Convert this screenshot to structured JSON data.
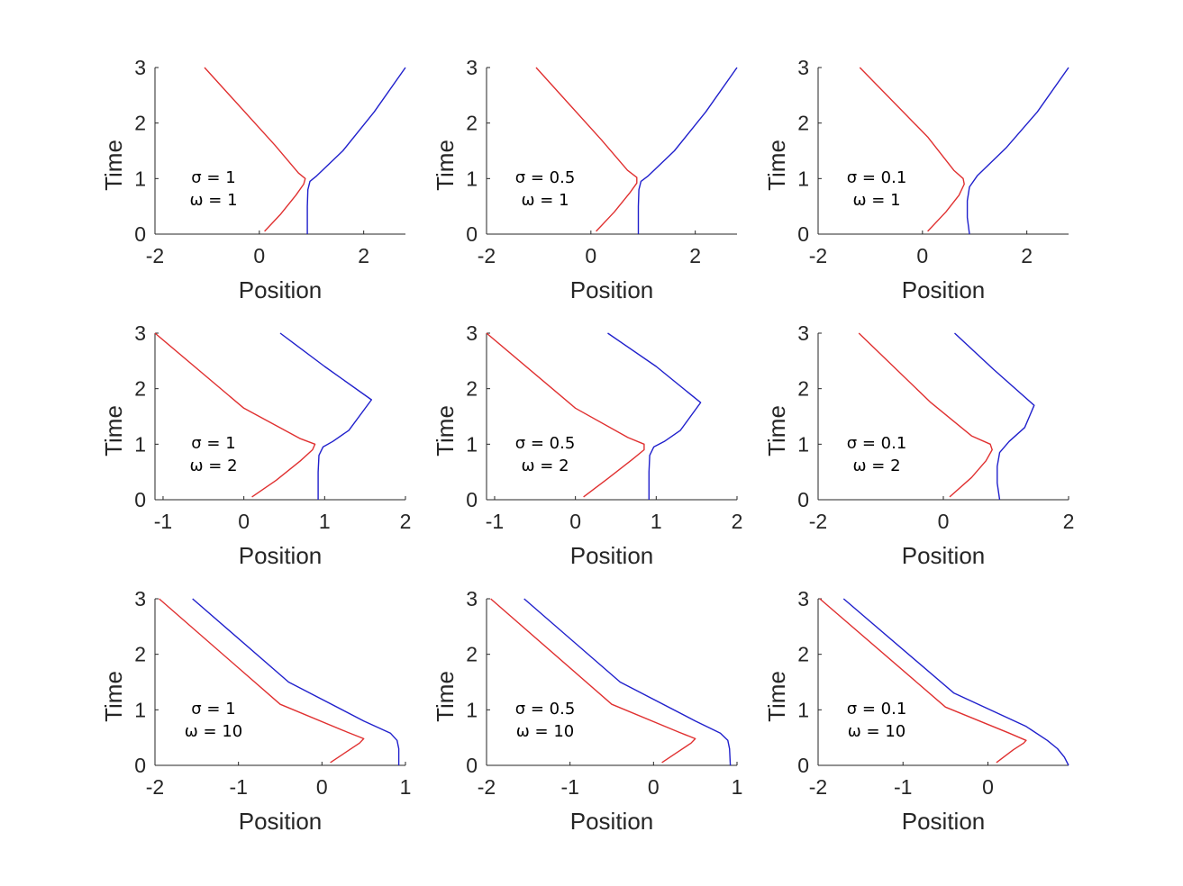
{
  "chart_data": [
    {
      "type": "line",
      "xlabel": "Position",
      "ylabel": "Time",
      "xlim": [
        -2,
        2.8
      ],
      "ylim": [
        0,
        3
      ],
      "xticks": [
        "-2",
        "0",
        "2"
      ],
      "yticks": [
        "0",
        "1",
        "2",
        "3"
      ],
      "annotation": [
        "σ = 1",
        "ω = 1"
      ],
      "colors": [
        "#e03030",
        "#2020cc"
      ],
      "series": [
        {
          "x": [
            0.1,
            0.4,
            0.7,
            0.85,
            0.88,
            0.75,
            0.3,
            -1.05
          ],
          "y": [
            0.05,
            0.35,
            0.7,
            0.9,
            1.0,
            1.1,
            1.6,
            3.0
          ]
        },
        {
          "x": [
            0.92,
            0.92,
            0.93,
            0.97,
            1.1,
            1.6,
            2.2,
            2.8
          ],
          "y": [
            0.0,
            0.5,
            0.8,
            0.95,
            1.05,
            1.5,
            2.2,
            3.0
          ]
        }
      ]
    },
    {
      "type": "line",
      "xlabel": "Position",
      "ylabel": "Time",
      "xlim": [
        -2,
        2.8
      ],
      "ylim": [
        0,
        3
      ],
      "xticks": [
        "-2",
        "0",
        "2"
      ],
      "yticks": [
        "0",
        "1",
        "2",
        "3"
      ],
      "annotation": [
        "σ = 0.5",
        "ω = 1"
      ],
      "colors": [
        "#e03030",
        "#2020cc"
      ],
      "series": [
        {
          "x": [
            0.1,
            0.45,
            0.75,
            0.88,
            0.88,
            0.7,
            0.2,
            -1.05
          ],
          "y": [
            0.05,
            0.4,
            0.75,
            0.92,
            1.02,
            1.15,
            1.7,
            3.0
          ]
        },
        {
          "x": [
            0.91,
            0.91,
            0.92,
            0.96,
            1.1,
            1.6,
            2.2,
            2.8
          ],
          "y": [
            0.0,
            0.5,
            0.8,
            0.95,
            1.05,
            1.5,
            2.2,
            3.0
          ]
        }
      ]
    },
    {
      "type": "line",
      "xlabel": "Position",
      "ylabel": "Time",
      "xlim": [
        -2,
        2.8
      ],
      "ylim": [
        0,
        3
      ],
      "xticks": [
        "-2",
        "0",
        "2"
      ],
      "yticks": [
        "0",
        "1",
        "2",
        "3"
      ],
      "annotation": [
        "σ = 0.1",
        "ω = 1"
      ],
      "colors": [
        "#e03030",
        "#2020cc"
      ],
      "series": [
        {
          "x": [
            0.1,
            0.45,
            0.7,
            0.8,
            0.78,
            0.6,
            0.1,
            -1.2
          ],
          "y": [
            0.05,
            0.4,
            0.7,
            0.9,
            1.0,
            1.15,
            1.75,
            3.0
          ]
        },
        {
          "x": [
            0.9,
            0.86,
            0.86,
            0.9,
            1.05,
            1.6,
            2.2,
            2.8
          ],
          "y": [
            0.0,
            0.3,
            0.6,
            0.85,
            1.05,
            1.55,
            2.2,
            3.0
          ]
        }
      ]
    },
    {
      "type": "line",
      "xlabel": "Position",
      "ylabel": "Time",
      "xlim": [
        -1.1,
        2
      ],
      "ylim": [
        0,
        3
      ],
      "xticks": [
        "-1",
        "0",
        "1",
        "2"
      ],
      "yticks": [
        "0",
        "1",
        "2",
        "3"
      ],
      "annotation": [
        "σ = 1",
        "ω = 2"
      ],
      "colors": [
        "#e03030",
        "#2020cc"
      ],
      "series": [
        {
          "x": [
            0.1,
            0.4,
            0.7,
            0.85,
            0.88,
            0.7,
            0.0,
            -1.1
          ],
          "y": [
            0.05,
            0.35,
            0.7,
            0.9,
            1.0,
            1.1,
            1.65,
            3.0
          ]
        },
        {
          "x": [
            0.92,
            0.92,
            0.93,
            0.98,
            1.1,
            1.3,
            1.58,
            1.0,
            0.45
          ],
          "y": [
            0.0,
            0.5,
            0.8,
            0.95,
            1.05,
            1.25,
            1.8,
            2.4,
            3.0
          ]
        }
      ]
    },
    {
      "type": "line",
      "xlabel": "Position",
      "ylabel": "Time",
      "xlim": [
        -1.1,
        2
      ],
      "ylim": [
        0,
        3
      ],
      "xticks": [
        "-1",
        "0",
        "1",
        "2"
      ],
      "yticks": [
        "0",
        "1",
        "2",
        "3"
      ],
      "annotation": [
        "σ = 0.5",
        "ω = 2"
      ],
      "colors": [
        "#e03030",
        "#2020cc"
      ],
      "series": [
        {
          "x": [
            0.1,
            0.4,
            0.7,
            0.85,
            0.85,
            0.65,
            0.0,
            -1.1
          ],
          "y": [
            0.05,
            0.38,
            0.72,
            0.9,
            1.0,
            1.12,
            1.65,
            3.0
          ]
        },
        {
          "x": [
            0.91,
            0.91,
            0.92,
            0.97,
            1.1,
            1.3,
            1.55,
            1.0,
            0.4
          ],
          "y": [
            0.0,
            0.5,
            0.8,
            0.95,
            1.05,
            1.25,
            1.75,
            2.4,
            3.0
          ]
        }
      ]
    },
    {
      "type": "line",
      "xlabel": "Position",
      "ylabel": "Time",
      "xlim": [
        -2,
        2
      ],
      "ylim": [
        0,
        3
      ],
      "xticks": [
        "-2",
        "0",
        "2"
      ],
      "yticks": [
        "0",
        "1",
        "2",
        "3"
      ],
      "annotation": [
        "σ = 0.1",
        "ω = 2"
      ],
      "colors": [
        "#e03030",
        "#2020cc"
      ],
      "series": [
        {
          "x": [
            0.1,
            0.45,
            0.68,
            0.78,
            0.75,
            0.45,
            -0.2,
            -1.35
          ],
          "y": [
            0.05,
            0.4,
            0.7,
            0.9,
            1.0,
            1.15,
            1.75,
            3.0
          ]
        },
        {
          "x": [
            0.9,
            0.86,
            0.86,
            0.9,
            1.05,
            1.3,
            1.45,
            0.8,
            0.18
          ],
          "y": [
            0.0,
            0.3,
            0.6,
            0.85,
            1.05,
            1.3,
            1.7,
            2.35,
            3.0
          ]
        }
      ]
    },
    {
      "type": "line",
      "xlabel": "Position",
      "ylabel": "Time",
      "xlim": [
        -2,
        1
      ],
      "ylim": [
        0,
        3
      ],
      "xticks": [
        "-2",
        "-1",
        "0",
        "1"
      ],
      "yticks": [
        "0",
        "1",
        "2",
        "3"
      ],
      "annotation": [
        "σ = 1",
        "ω = 10"
      ],
      "colors": [
        "#e03030",
        "#2020cc"
      ],
      "series": [
        {
          "x": [
            0.1,
            0.3,
            0.45,
            0.5,
            0.3,
            -0.5,
            -1.95
          ],
          "y": [
            0.05,
            0.25,
            0.4,
            0.48,
            0.6,
            1.1,
            3.0
          ]
        },
        {
          "x": [
            0.92,
            0.92,
            0.9,
            0.82,
            0.5,
            -0.4,
            -1.55
          ],
          "y": [
            0.0,
            0.3,
            0.45,
            0.58,
            0.8,
            1.5,
            3.0
          ]
        }
      ]
    },
    {
      "type": "line",
      "xlabel": "Position",
      "ylabel": "Time",
      "xlim": [
        -2,
        1
      ],
      "ylim": [
        0,
        3
      ],
      "xticks": [
        "-2",
        "-1",
        "0",
        "1"
      ],
      "yticks": [
        "0",
        "1",
        "2",
        "3"
      ],
      "annotation": [
        "σ = 0.5",
        "ω = 10"
      ],
      "colors": [
        "#e03030",
        "#2020cc"
      ],
      "series": [
        {
          "x": [
            0.1,
            0.3,
            0.45,
            0.5,
            0.3,
            -0.5,
            -1.95
          ],
          "y": [
            0.05,
            0.25,
            0.4,
            0.48,
            0.6,
            1.1,
            3.0
          ]
        },
        {
          "x": [
            0.92,
            0.91,
            0.89,
            0.8,
            0.5,
            -0.4,
            -1.55
          ],
          "y": [
            0.0,
            0.3,
            0.45,
            0.58,
            0.8,
            1.5,
            3.0
          ]
        }
      ]
    },
    {
      "type": "line",
      "xlabel": "Position",
      "ylabel": "Time",
      "xlim": [
        -2,
        0.95
      ],
      "ylim": [
        0,
        3
      ],
      "xticks": [
        "-2",
        "-1",
        "0"
      ],
      "yticks": [
        "0",
        "1",
        "2",
        "3"
      ],
      "annotation": [
        "σ = 0.1",
        "ω = 10"
      ],
      "colors": [
        "#e03030",
        "#2020cc"
      ],
      "series": [
        {
          "x": [
            0.1,
            0.3,
            0.42,
            0.45,
            0.25,
            -0.5,
            -1.98
          ],
          "y": [
            0.05,
            0.28,
            0.4,
            0.45,
            0.58,
            1.05,
            3.0
          ]
        },
        {
          "x": [
            0.95,
            0.9,
            0.82,
            0.7,
            0.45,
            -0.4,
            -1.7
          ],
          "y": [
            0.0,
            0.15,
            0.3,
            0.45,
            0.7,
            1.3,
            3.0
          ]
        }
      ]
    }
  ]
}
